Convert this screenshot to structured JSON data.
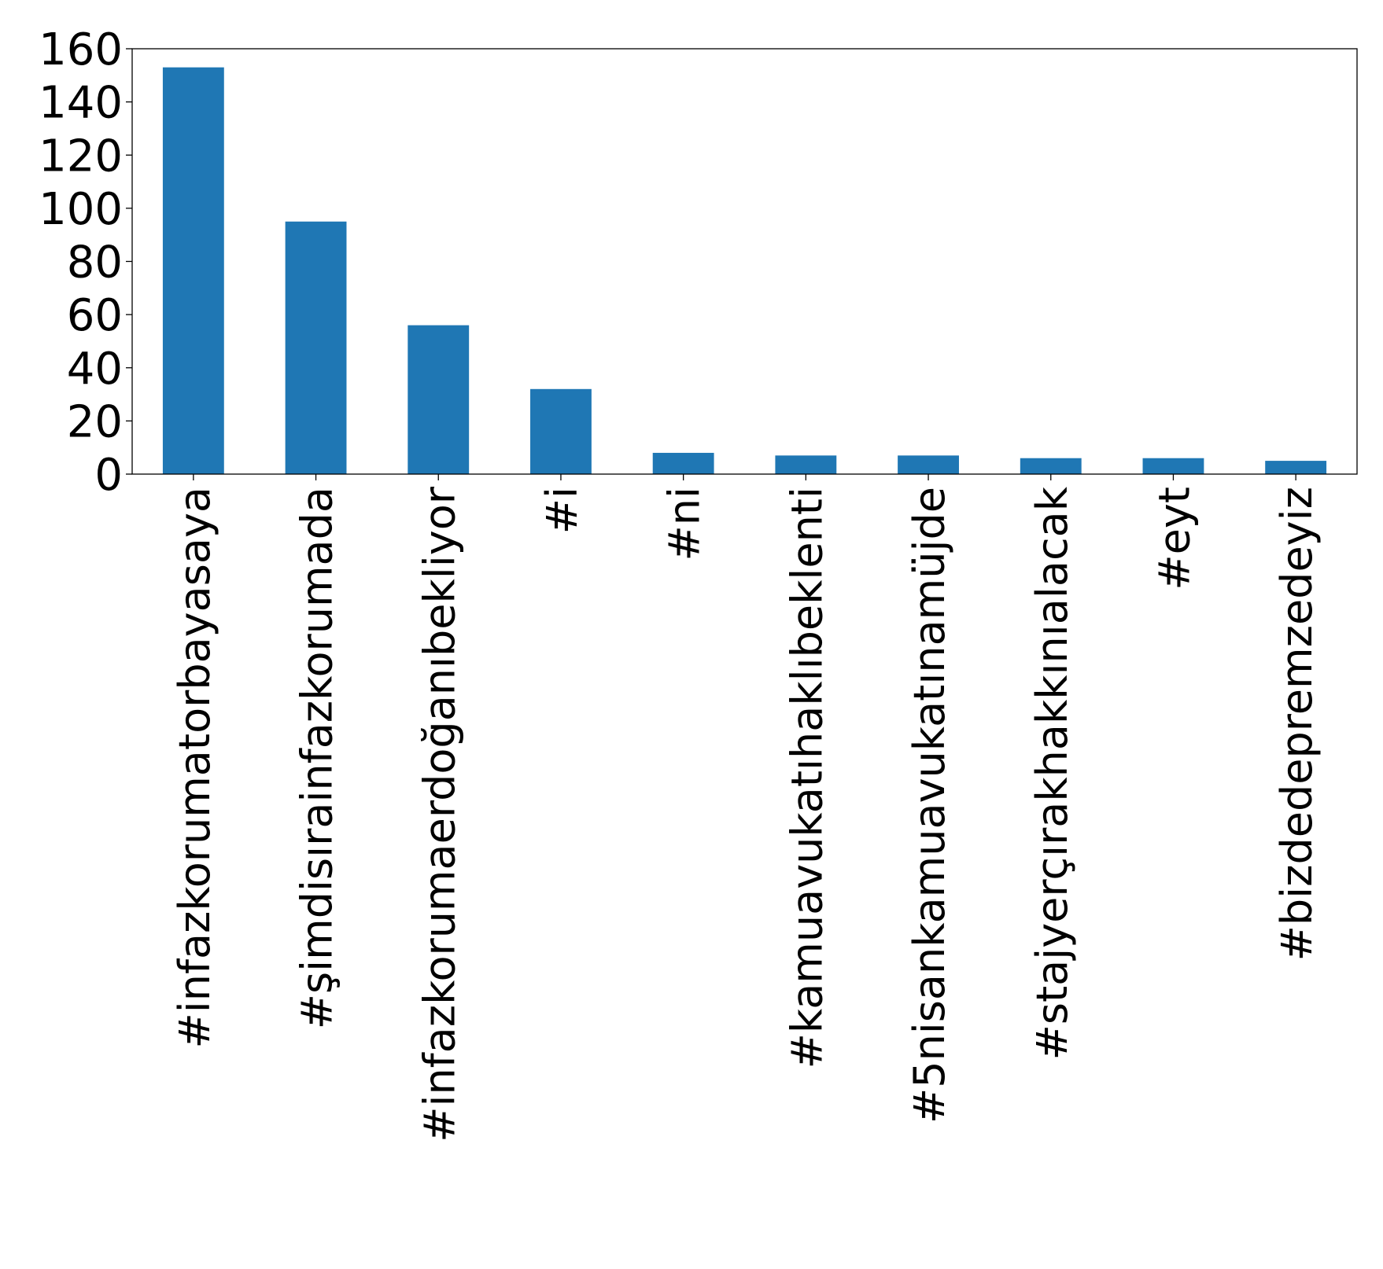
{
  "chart_data": {
    "type": "bar",
    "title": "",
    "xlabel": "",
    "ylabel": "",
    "categories": [
      "#infazkorumatorbayasaya",
      "#şimdisırainfazkorumada",
      "#infazkorumaerdoğanıbekliyor",
      "#i",
      "#ni",
      "#kamuavukatıhaklıbeklenti",
      "#5nisankamuavukatınamüjde",
      "#stajyerçırakhakkınıalacak",
      "#eyt",
      "#bizdedepremzedeyiz"
    ],
    "values": [
      153,
      95,
      56,
      32,
      8,
      7,
      7,
      6,
      6,
      5
    ],
    "ylim": [
      0,
      160
    ],
    "yticks": [
      "0",
      "20",
      "40",
      "60",
      "80",
      "100",
      "120",
      "140",
      "160"
    ],
    "grid": false,
    "legend": "none",
    "bar_color": "#1f77b4"
  }
}
